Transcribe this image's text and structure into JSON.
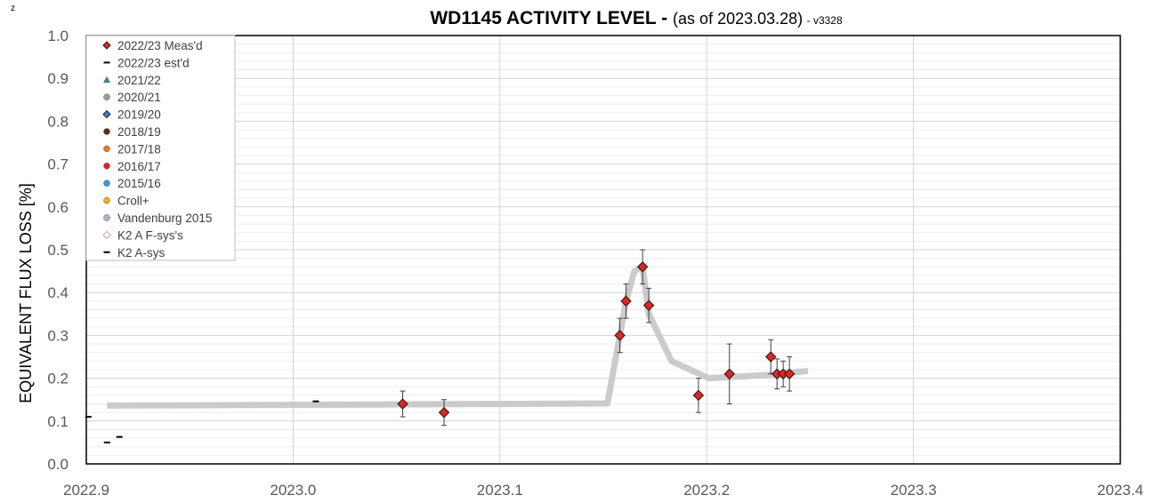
{
  "corner_mark": "z",
  "chart_data": {
    "type": "scatter",
    "title": "WD1145 ACTIVITY LEVEL - ",
    "subtitle": "(as of 2023.03.28)",
    "version": " - v3328",
    "xlabel": "",
    "ylabel": "EQUIVALENT FLUX LOSS [%]",
    "xlim": [
      2022.9,
      2023.4
    ],
    "ylim": [
      0.0,
      1.0
    ],
    "x_ticks": [
      "2022.9",
      "2023.0",
      "2023.1",
      "2023.2",
      "2023.3",
      "2023.4"
    ],
    "y_ticks": [
      "0.0",
      "0.1",
      "0.2",
      "0.3",
      "0.4",
      "0.5",
      "0.6",
      "0.7",
      "0.8",
      "0.9",
      "1.0"
    ],
    "grid": true,
    "legend_position": "top-left",
    "legend": [
      {
        "label": "2022/23 Meas'd",
        "marker": "diamond",
        "color": "#d42a2a"
      },
      {
        "label": "2022/23 est'd",
        "marker": "dash",
        "color": "#000000"
      },
      {
        "label": "2021/22",
        "marker": "triangle",
        "color": "#4a8a8a"
      },
      {
        "label": "2020/21",
        "marker": "circle",
        "color": "#a89a90"
      },
      {
        "label": "2019/20",
        "marker": "diamond",
        "color": "#3a7fd0"
      },
      {
        "label": "2018/19",
        "marker": "circle",
        "color": "#5a2a1e"
      },
      {
        "label": "2017/18",
        "marker": "circle",
        "color": "#e87a1e"
      },
      {
        "label": "2016/17",
        "marker": "circle",
        "color": "#e0201e"
      },
      {
        "label": "2015/16",
        "marker": "circle",
        "color": "#3a9ad0"
      },
      {
        "label": "Croll+",
        "marker": "circle",
        "color": "#f0b400"
      },
      {
        "label": "Vandenburg 2015",
        "marker": "circle",
        "color": "#b0b0c8"
      },
      {
        "label": "K2 A  F-sys's",
        "marker": "diamond-open",
        "color": "#d8a090"
      },
      {
        "label": "K2 A-sys",
        "marker": "dash",
        "color": "#000000"
      }
    ],
    "series": [
      {
        "name": "2022/23 Meas'd",
        "points": [
          {
            "x": 2023.053,
            "y": 0.14,
            "err": 0.03
          },
          {
            "x": 2023.073,
            "y": 0.12,
            "err": 0.03
          },
          {
            "x": 2023.158,
            "y": 0.3,
            "err": 0.04
          },
          {
            "x": 2023.161,
            "y": 0.38,
            "err": 0.04
          },
          {
            "x": 2023.169,
            "y": 0.46,
            "err": 0.04
          },
          {
            "x": 2023.172,
            "y": 0.37,
            "err": 0.04
          },
          {
            "x": 2023.196,
            "y": 0.16,
            "err": 0.04
          },
          {
            "x": 2023.211,
            "y": 0.21,
            "err": 0.07
          },
          {
            "x": 2023.231,
            "y": 0.25,
            "err": 0.04
          },
          {
            "x": 2023.234,
            "y": 0.21,
            "err": 0.035
          },
          {
            "x": 2023.237,
            "y": 0.21,
            "err": 0.03
          },
          {
            "x": 2023.24,
            "y": 0.21,
            "err": 0.04
          }
        ]
      },
      {
        "name": "2022/23 est'd",
        "points": [
          {
            "x": 2023.011,
            "y": 0.146
          }
        ]
      },
      {
        "name": "K2 A-sys",
        "points": [
          {
            "x": 2022.901,
            "y": 0.11
          },
          {
            "x": 2022.91,
            "y": 0.05
          },
          {
            "x": 2022.916,
            "y": 0.063
          }
        ]
      },
      {
        "name": "",
        "type": "line",
        "color": "#c8c8c8",
        "points": [
          {
            "x": 2022.91,
            "y": 0.136
          },
          {
            "x": 2023.152,
            "y": 0.141
          },
          {
            "x": 2023.158,
            "y": 0.3
          },
          {
            "x": 2023.161,
            "y": 0.38
          },
          {
            "x": 2023.165,
            "y": 0.45
          },
          {
            "x": 2023.169,
            "y": 0.46
          },
          {
            "x": 2023.172,
            "y": 0.35
          },
          {
            "x": 2023.183,
            "y": 0.24
          },
          {
            "x": 2023.201,
            "y": 0.2
          },
          {
            "x": 2023.231,
            "y": 0.208
          },
          {
            "x": 2023.249,
            "y": 0.217
          }
        ]
      }
    ]
  }
}
